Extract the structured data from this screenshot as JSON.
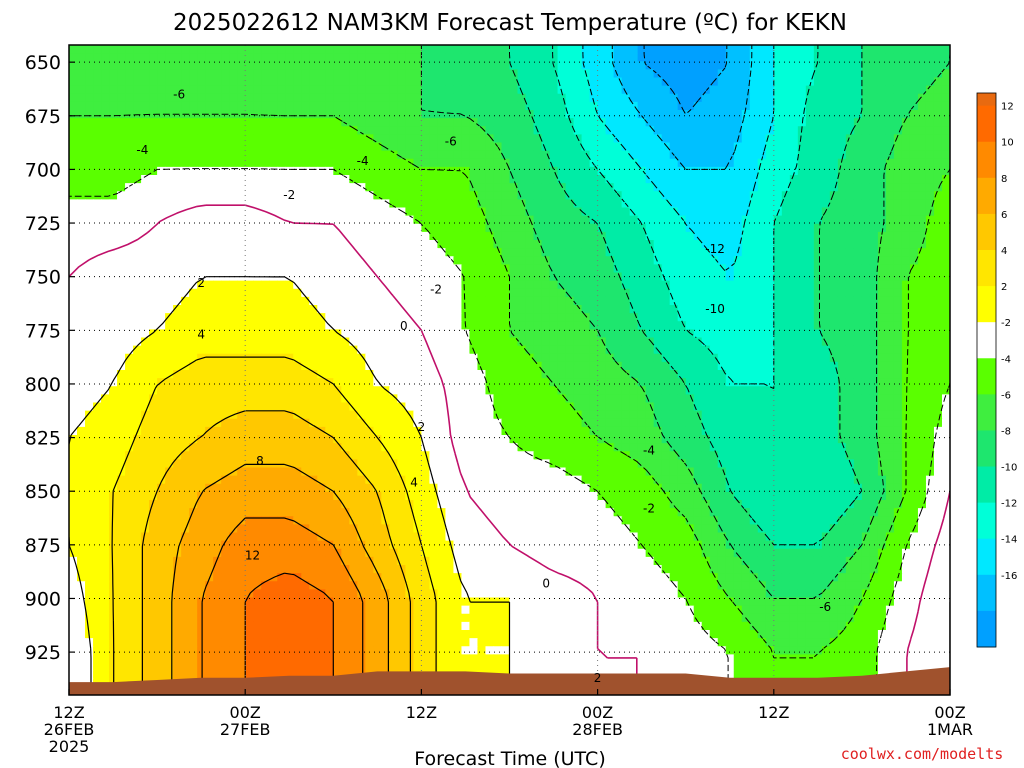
{
  "chart_data": {
    "type": "heatmap",
    "title": "2025022612 NAM3KM Forecast Temperature (ºC) for KEKN",
    "xlabel": "Forecast Time (UTC)",
    "ylabel": "",
    "credit": "coolwx.com/modelts",
    "y_scale": "pressure_hPa_inverted",
    "ylim": [
      945,
      642
    ],
    "y_ticks": [
      650,
      675,
      700,
      725,
      750,
      775,
      800,
      825,
      850,
      875,
      900,
      925
    ],
    "xlim": [
      0,
      60
    ],
    "x_ticks": [
      {
        "hour": 0,
        "label1": "12Z",
        "label2": "26FEB",
        "label3": "2025"
      },
      {
        "hour": 12,
        "label1": "00Z",
        "label2": "27FEB",
        "label3": ""
      },
      {
        "hour": 24,
        "label1": "12Z",
        "label2": "",
        "label3": ""
      },
      {
        "hour": 36,
        "label1": "00Z",
        "label2": "28FEB",
        "label3": ""
      },
      {
        "hour": 48,
        "label1": "12Z",
        "label2": "",
        "label3": ""
      },
      {
        "hour": 60,
        "label1": "00Z",
        "label2": "1MAR",
        "label3": ""
      }
    ],
    "grid": true,
    "legend": {
      "placement": "right",
      "bins": [
        {
          "label": "12",
          "color": "#ff6a00"
        },
        {
          "label": "10",
          "color": "#ff8a00"
        },
        {
          "label": "8",
          "color": "#ffaa00"
        },
        {
          "label": "6",
          "color": "#ffc800"
        },
        {
          "label": "4",
          "color": "#ffe600"
        },
        {
          "label": "2",
          "color": "#ffff00"
        },
        {
          "label": "-2",
          "color": "#ffffff"
        },
        {
          "label": "-4",
          "color": "#5aff00"
        },
        {
          "label": "-6",
          "color": "#3fee3f"
        },
        {
          "label": "-8",
          "color": "#1ee66e"
        },
        {
          "label": "-10",
          "color": "#00eca6"
        },
        {
          "label": "-12",
          "color": "#00ffd8"
        },
        {
          "label": "-14",
          "color": "#00e8ff"
        },
        {
          "label": "-16",
          "color": "#00c0ff"
        },
        {
          "label": "",
          "color": "#00a0ff"
        }
      ],
      "colors_warm_to_cold": [
        "#ff6a00",
        "#ff8a00",
        "#ffaa00",
        "#ffc800",
        "#ffe600",
        "#ffff00",
        "#ffffff",
        "#5aff00",
        "#3fee3f",
        "#1ee66e",
        "#00eca6",
        "#00ffd8",
        "#00e8ff",
        "#00c0ff",
        "#00a0ff"
      ],
      "top_color": "#e86a10"
    },
    "contour_levels_labeled": [
      "12",
      "8",
      "4",
      "2",
      "0",
      "-2",
      "-4",
      "-6",
      "-10",
      "-12"
    ],
    "ground_color": "#a0522d",
    "freezing_line_color": "#c0106a",
    "hours": [
      0,
      3,
      6,
      9,
      12,
      15,
      18,
      21,
      24,
      27,
      30,
      33,
      36,
      39,
      42,
      45,
      48,
      51,
      54,
      57,
      60
    ],
    "levels": [
      925,
      900,
      875,
      850,
      825,
      800,
      775,
      750,
      725,
      700,
      675,
      650
    ],
    "temperature_c": [
      [
        0,
        4,
        7,
        10,
        12,
        13,
        12,
        9,
        5,
        2,
        2,
        1,
        0,
        0,
        -1,
        -2,
        -4,
        -4,
        -3,
        0,
        2
      ],
      [
        1,
        4,
        7,
        10,
        12,
        13,
        12,
        9,
        5,
        2,
        2,
        1,
        0,
        -1,
        -2,
        -4,
        -6,
        -6,
        -4,
        -1,
        2
      ],
      [
        2,
        4,
        7,
        9,
        11,
        11,
        10,
        7,
        4,
        1,
        0,
        -1,
        -1,
        -2,
        -3,
        -6,
        -8,
        -8,
        -6,
        -2,
        1
      ],
      [
        2,
        4,
        6,
        8,
        9,
        9,
        8,
        6,
        3,
        0,
        -1,
        -1,
        -2,
        -3,
        -5,
        -8,
        -10,
        -10,
        -8,
        -4,
        0
      ],
      [
        2,
        3,
        5,
        6,
        7,
        7,
        6,
        4,
        2,
        -1,
        -2,
        -3,
        -4,
        -5,
        -7,
        -9,
        -10,
        -9,
        -7,
        -4,
        -1
      ],
      [
        1,
        2,
        4,
        5,
        5,
        5,
        4,
        2,
        1,
        -1,
        -3,
        -4,
        -5,
        -6,
        -8,
        -10,
        -10,
        -9,
        -7,
        -4,
        -2
      ],
      [
        1,
        1,
        2,
        3,
        3,
        3,
        2,
        1,
        0,
        -2,
        -4,
        -5,
        -6,
        -8,
        -10,
        -11,
        -10,
        -8,
        -7,
        -4,
        -3
      ],
      [
        0,
        1,
        1,
        2,
        2,
        2,
        1,
        0,
        -1,
        -2,
        -4,
        -6,
        -7,
        -9,
        -11,
        -12,
        -10,
        -8,
        -7,
        -4,
        -3
      ],
      [
        -1,
        -1,
        0,
        1,
        1,
        0,
        0,
        -1,
        -2,
        -3,
        -5,
        -7,
        -8,
        -10,
        -12,
        -13,
        -10,
        -8,
        -7,
        -5,
        -3
      ],
      [
        -3,
        -3,
        -2,
        -2,
        -2,
        -2,
        -2,
        -3,
        -4,
        -4,
        -6,
        -8,
        -10,
        -12,
        -14,
        -14,
        -11,
        -9,
        -7,
        -5,
        -4
      ],
      [
        -4,
        -4,
        -4,
        -4,
        -4,
        -4,
        -4,
        -5,
        -6,
        -6,
        -7,
        -9,
        -12,
        -14,
        -16,
        -15,
        -12,
        -9,
        -8,
        -6,
        -5
      ],
      [
        -5,
        -5,
        -5,
        -5,
        -5,
        -6,
        -6,
        -6,
        -6,
        -7,
        -8,
        -10,
        -13,
        -16,
        -17,
        -16,
        -12,
        -10,
        -8,
        -7,
        -6
      ]
    ],
    "contour_labels": [
      {
        "text": "12",
        "hour": 12.5,
        "p": 880
      },
      {
        "text": "8",
        "hour": 13,
        "p": 836
      },
      {
        "text": "4",
        "hour": 9,
        "p": 777
      },
      {
        "text": "2",
        "hour": 9,
        "p": 753
      },
      {
        "text": "4",
        "hour": 23.5,
        "p": 846
      },
      {
        "text": "2",
        "hour": 24,
        "p": 820
      },
      {
        "text": "0",
        "hour": 22.8,
        "p": 773
      },
      {
        "text": "-2",
        "hour": 25,
        "p": 756
      },
      {
        "text": "-2",
        "hour": 15,
        "p": 712
      },
      {
        "text": "-4",
        "hour": 5,
        "p": 691
      },
      {
        "text": "-6",
        "hour": 7.5,
        "p": 665
      },
      {
        "text": "-4",
        "hour": 20,
        "p": 696
      },
      {
        "text": "-6",
        "hour": 26,
        "p": 687
      },
      {
        "text": "0",
        "hour": 32.5,
        "p": 893
      },
      {
        "text": "2",
        "hour": 36,
        "p": 937
      },
      {
        "text": "-2",
        "hour": 39.5,
        "p": 858
      },
      {
        "text": "-4",
        "hour": 39.5,
        "p": 831
      },
      {
        "text": "-10",
        "hour": 44,
        "p": 765
      },
      {
        "text": "-12",
        "hour": 44,
        "p": 737
      },
      {
        "text": "-6",
        "hour": 51.5,
        "p": 904
      }
    ],
    "ground_pressure": [
      939,
      939,
      938,
      937,
      937,
      936,
      936,
      934,
      934,
      934,
      935,
      935,
      935,
      935,
      935,
      937,
      937,
      937,
      936,
      934,
      932
    ]
  }
}
